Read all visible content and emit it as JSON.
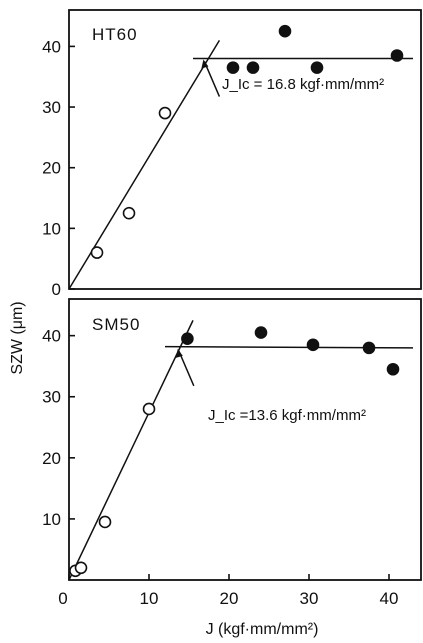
{
  "figure": {
    "ylabel": "SZW (μm)",
    "xlabel": "J  (kgf·mm/mm²)"
  },
  "chart_data": [
    {
      "type": "scatter",
      "title": "HT60",
      "annotation": "J_Ic = 16.8 kgf·mm/mm²",
      "xlim": [
        0,
        44
      ],
      "ylim": [
        0,
        46
      ],
      "x_ticks": [],
      "y_ticks": [
        0,
        10,
        20,
        30,
        40
      ],
      "series": [
        {
          "marker": "open-circle",
          "points": [
            [
              3.5,
              6
            ],
            [
              7.5,
              12.5
            ],
            [
              12,
              29
            ]
          ]
        },
        {
          "marker": "filled-circle",
          "points": [
            [
              20.5,
              36.5
            ],
            [
              23,
              36.5
            ],
            [
              27,
              42.5
            ],
            [
              31,
              36.5
            ],
            [
              41,
              38.5
            ]
          ]
        }
      ],
      "lines": [
        {
          "kind": "blunting-line",
          "from": [
            0,
            0
          ],
          "to": [
            18.8,
            41
          ]
        },
        {
          "kind": "plateau",
          "from": [
            15.5,
            38
          ],
          "to": [
            43,
            38
          ]
        }
      ],
      "jic_x": 16.8,
      "jic_y": 38
    },
    {
      "type": "scatter",
      "title": "SM50",
      "annotation": "J_Ic =13.6 kgf·mm/mm²",
      "xlim": [
        0,
        44
      ],
      "ylim": [
        0,
        46
      ],
      "x_ticks": [
        0,
        10,
        20,
        30,
        40
      ],
      "y_ticks": [
        10,
        20,
        30,
        40
      ],
      "series": [
        {
          "marker": "open-circle",
          "points": [
            [
              0.8,
              1.5
            ],
            [
              1.5,
              2
            ],
            [
              4.5,
              9.5
            ],
            [
              10,
              28
            ]
          ]
        },
        {
          "marker": "filled-circle",
          "points": [
            [
              14.8,
              39.5
            ],
            [
              24,
              40.5
            ],
            [
              30.5,
              38.5
            ],
            [
              37.5,
              38
            ],
            [
              40.5,
              34.5
            ]
          ]
        }
      ],
      "lines": [
        {
          "kind": "blunting-line",
          "from": [
            0,
            0
          ],
          "to": [
            15.5,
            42.5
          ]
        },
        {
          "kind": "plateau",
          "from": [
            12,
            38.2
          ],
          "to": [
            43,
            38
          ]
        }
      ],
      "jic_x": 13.6,
      "jic_y": 38
    }
  ]
}
